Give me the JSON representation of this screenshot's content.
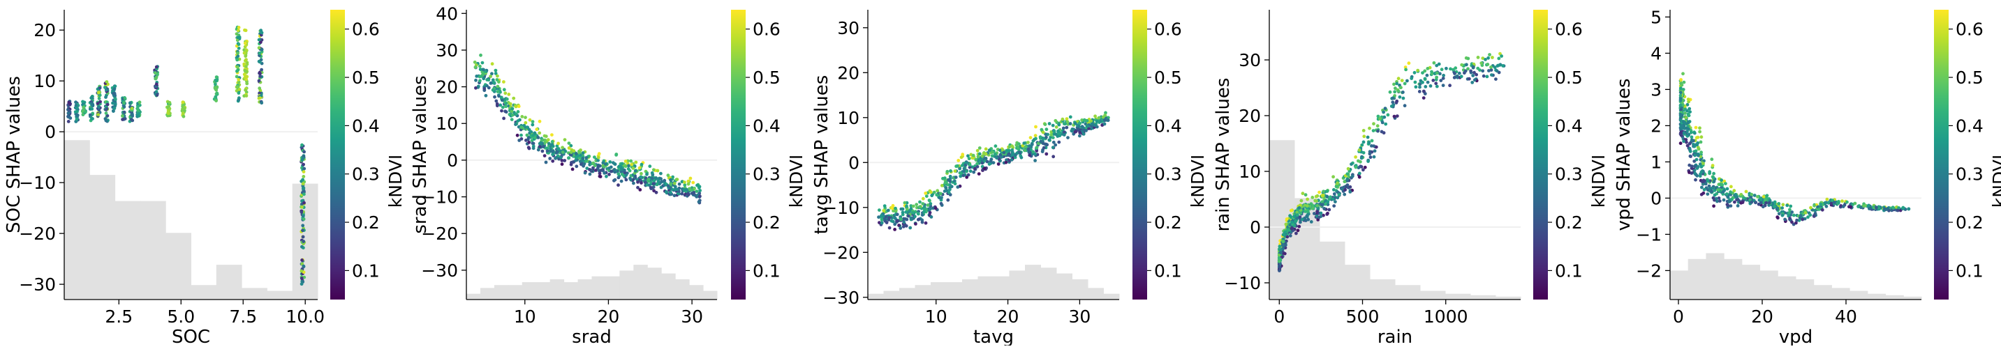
{
  "colormap": "viridis",
  "colorbar": {
    "label": "kNDVI",
    "range": [
      0.04,
      0.64
    ],
    "ticks": [
      "0.1",
      "0.2",
      "0.3",
      "0.4",
      "0.5",
      "0.6"
    ],
    "tick_values": [
      0.1,
      0.2,
      0.3,
      0.4,
      0.5,
      0.6
    ]
  },
  "colors": {
    "histogram": "#e1e1e1",
    "zero_line": "#f0f0f0",
    "axis": "#000000"
  },
  "chart_data": [
    {
      "type": "scatter",
      "feature": "SOC",
      "xlabel": "SOC",
      "ylabel": "SOC SHAP values",
      "xlim": [
        0.3,
        10.5
      ],
      "ylim": [
        -33,
        24
      ],
      "xticks": [
        2.5,
        5.0,
        7.5,
        10.0
      ],
      "xtick_labels": [
        "2.5",
        "5.0",
        "7.5",
        "10.0"
      ],
      "yticks": [
        -30,
        -20,
        -10,
        0,
        10,
        20
      ],
      "ytick_labels": [
        "−30",
        "−20",
        "−10",
        "0",
        "10",
        "20"
      ],
      "histogram": [
        0.55,
        0.43,
        0.34,
        0.34,
        0.23,
        0.05,
        0.12,
        0.04,
        0.03,
        0.4
      ],
      "clusters": [
        {
          "x": 0.5,
          "y": [
            2,
            6
          ],
          "c": [
            0.1,
            0.3
          ]
        },
        {
          "x": 0.8,
          "y": [
            2,
            6
          ],
          "c": [
            0.2,
            0.4
          ]
        },
        {
          "x": 1.1,
          "y": [
            3,
            6
          ],
          "c": [
            0.3,
            0.5
          ]
        },
        {
          "x": 1.4,
          "y": [
            2,
            7
          ],
          "c": [
            0.2,
            0.5
          ]
        },
        {
          "x": 1.7,
          "y": [
            3,
            9
          ],
          "c": [
            0.1,
            0.6
          ]
        },
        {
          "x": 2.0,
          "y": [
            2,
            10
          ],
          "c": [
            0.1,
            0.6
          ]
        },
        {
          "x": 2.3,
          "y": [
            4,
            9
          ],
          "c": [
            0.2,
            0.4
          ]
        },
        {
          "x": 2.7,
          "y": [
            2,
            7
          ],
          "c": [
            0.1,
            0.5
          ]
        },
        {
          "x": 3.0,
          "y": [
            2,
            6
          ],
          "c": [
            0.2,
            0.6
          ]
        },
        {
          "x": 3.3,
          "y": [
            3,
            6
          ],
          "c": [
            0.3,
            0.5
          ]
        },
        {
          "x": 4.0,
          "y": [
            7,
            13
          ],
          "c": [
            0.1,
            0.5
          ]
        },
        {
          "x": 4.5,
          "y": [
            3,
            6
          ],
          "c": [
            0.45,
            0.6
          ]
        },
        {
          "x": 5.1,
          "y": [
            3,
            6
          ],
          "c": [
            0.5,
            0.6
          ]
        },
        {
          "x": 6.4,
          "y": [
            6,
            11
          ],
          "c": [
            0.4,
            0.5
          ]
        },
        {
          "x": 7.3,
          "y": [
            6,
            21
          ],
          "c": [
            0.3,
            0.62
          ]
        },
        {
          "x": 7.6,
          "y": [
            7,
            20
          ],
          "c": [
            0.5,
            0.62
          ]
        },
        {
          "x": 8.2,
          "y": [
            5,
            20
          ],
          "c": [
            0.1,
            0.62
          ]
        },
        {
          "x": 9.9,
          "y": [
            -30,
            -2
          ],
          "c": [
            0.1,
            0.62
          ]
        }
      ]
    },
    {
      "type": "scatter",
      "feature": "srad",
      "xlabel": "srad",
      "ylabel": "srad SHAP values",
      "xlim": [
        3,
        33
      ],
      "ylim": [
        -38,
        41
      ],
      "xticks": [
        10,
        20,
        30
      ],
      "xtick_labels": [
        "10",
        "20",
        "30"
      ],
      "yticks": [
        -30,
        -20,
        -10,
        0,
        10,
        20,
        30,
        40
      ],
      "ytick_labels": [
        "−30",
        "−20",
        "−10",
        "0",
        "10",
        "20",
        "30",
        "40"
      ],
      "histogram": [
        0.02,
        0.04,
        0.05,
        0.05,
        0.06,
        0.06,
        0.07,
        0.06,
        0.07,
        0.08,
        0.08,
        0.1,
        0.12,
        0.11,
        0.09,
        0.07,
        0.05,
        0.03
      ],
      "trend": [
        [
          4,
          24
        ],
        [
          6,
          21
        ],
        [
          8,
          14
        ],
        [
          10,
          8
        ],
        [
          13,
          3
        ],
        [
          16,
          1
        ],
        [
          19,
          -2
        ],
        [
          22,
          -3
        ],
        [
          25,
          -5
        ],
        [
          28,
          -7
        ],
        [
          31,
          -9
        ]
      ],
      "spread": [
        [
          4,
          8
        ],
        [
          6,
          10
        ],
        [
          8,
          9
        ],
        [
          10,
          8
        ],
        [
          13,
          6
        ],
        [
          16,
          5
        ],
        [
          19,
          5
        ],
        [
          22,
          6
        ],
        [
          25,
          6
        ],
        [
          28,
          6
        ],
        [
          31,
          4
        ]
      ]
    },
    {
      "type": "scatter",
      "feature": "tavg",
      "xlabel": "tavg",
      "ylabel": "tavg SHAP values",
      "xlim": [
        0.5,
        35.5
      ],
      "ylim": [
        -30.5,
        34
      ],
      "xticks": [
        10,
        20,
        30
      ],
      "xtick_labels": [
        "10",
        "20",
        "30"
      ],
      "yticks": [
        -30,
        -20,
        -10,
        0,
        10,
        20,
        30
      ],
      "ytick_labels": [
        "−30",
        "−20",
        "−10",
        "0",
        "10",
        "20",
        "30"
      ],
      "histogram": [
        0.02,
        0.03,
        0.04,
        0.05,
        0.06,
        0.06,
        0.07,
        0.08,
        0.08,
        0.1,
        0.12,
        0.11,
        0.09,
        0.07,
        0.04,
        0.02
      ],
      "trend": [
        [
          2,
          -12
        ],
        [
          5,
          -12
        ],
        [
          8,
          -11
        ],
        [
          11,
          -6
        ],
        [
          14,
          -1
        ],
        [
          17,
          1
        ],
        [
          20,
          2
        ],
        [
          23,
          3
        ],
        [
          26,
          6
        ],
        [
          28,
          8
        ],
        [
          31,
          8
        ],
        [
          34,
          10
        ]
      ],
      "spread": [
        [
          2,
          4
        ],
        [
          5,
          5
        ],
        [
          8,
          6
        ],
        [
          11,
          6
        ],
        [
          14,
          5
        ],
        [
          17,
          4
        ],
        [
          20,
          4
        ],
        [
          23,
          4
        ],
        [
          26,
          8
        ],
        [
          28,
          6
        ],
        [
          31,
          3
        ],
        [
          34,
          2
        ]
      ]
    },
    {
      "type": "scatter",
      "feature": "rain",
      "xlabel": "rain",
      "ylabel": "rain SHAP values",
      "xlim": [
        -60,
        1450
      ],
      "ylim": [
        -13,
        39
      ],
      "xticks": [
        0,
        500,
        1000
      ],
      "xtick_labels": [
        "0",
        "500",
        "1000"
      ],
      "yticks": [
        -10,
        0,
        10,
        20,
        30
      ],
      "ytick_labels": [
        "−10",
        "0",
        "10",
        "20",
        "30"
      ],
      "histogram": [
        0.55,
        0.35,
        0.2,
        0.12,
        0.07,
        0.05,
        0.03,
        0.02,
        0.015,
        0.01
      ],
      "trend": [
        [
          0,
          -6
        ],
        [
          30,
          -2
        ],
        [
          80,
          1
        ],
        [
          150,
          3
        ],
        [
          250,
          4
        ],
        [
          400,
          8
        ],
        [
          550,
          15
        ],
        [
          700,
          24
        ],
        [
          900,
          27
        ],
        [
          1100,
          28
        ],
        [
          1350,
          29
        ]
      ],
      "spread": [
        [
          0,
          4
        ],
        [
          30,
          4
        ],
        [
          80,
          4
        ],
        [
          150,
          4
        ],
        [
          250,
          4
        ],
        [
          400,
          5
        ],
        [
          550,
          6
        ],
        [
          700,
          7
        ],
        [
          900,
          6
        ],
        [
          1100,
          5
        ],
        [
          1350,
          4
        ]
      ]
    },
    {
      "type": "scatter",
      "feature": "vpd",
      "xlabel": "vpd",
      "ylabel": "vpd SHAP values",
      "xlim": [
        -2,
        58
      ],
      "ylim": [
        -2.8,
        5.2
      ],
      "xticks": [
        0,
        20,
        40
      ],
      "xtick_labels": [
        "0",
        "20",
        "40"
      ],
      "yticks": [
        -2,
        -1,
        0,
        1,
        2,
        3,
        4,
        5
      ],
      "ytick_labels": [
        "−2",
        "−1",
        "0",
        "1",
        "2",
        "3",
        "4",
        "5"
      ],
      "histogram": [
        0.1,
        0.14,
        0.16,
        0.14,
        0.12,
        0.1,
        0.08,
        0.07,
        0.05,
        0.04,
        0.03,
        0.02,
        0.015,
        0.01
      ],
      "trend": [
        [
          0.5,
          2.5
        ],
        [
          2,
          2
        ],
        [
          4,
          1.3
        ],
        [
          7,
          0.5
        ],
        [
          10,
          0.2
        ],
        [
          14,
          0
        ],
        [
          18,
          0
        ],
        [
          22,
          -0.1
        ],
        [
          25,
          -0.4
        ],
        [
          30,
          -0.5
        ],
        [
          36,
          -0.1
        ],
        [
          42,
          -0.2
        ],
        [
          50,
          -0.3
        ],
        [
          55,
          -0.3
        ]
      ],
      "spread": [
        [
          0.5,
          1.5
        ],
        [
          2,
          1.6
        ],
        [
          4,
          1.4
        ],
        [
          7,
          1.1
        ],
        [
          10,
          0.8
        ],
        [
          14,
          0.4
        ],
        [
          18,
          0.3
        ],
        [
          22,
          0.3
        ],
        [
          25,
          0.5
        ],
        [
          30,
          0.4
        ],
        [
          36,
          0.2
        ],
        [
          42,
          0.15
        ],
        [
          50,
          0.1
        ],
        [
          55,
          0.1
        ]
      ]
    }
  ]
}
